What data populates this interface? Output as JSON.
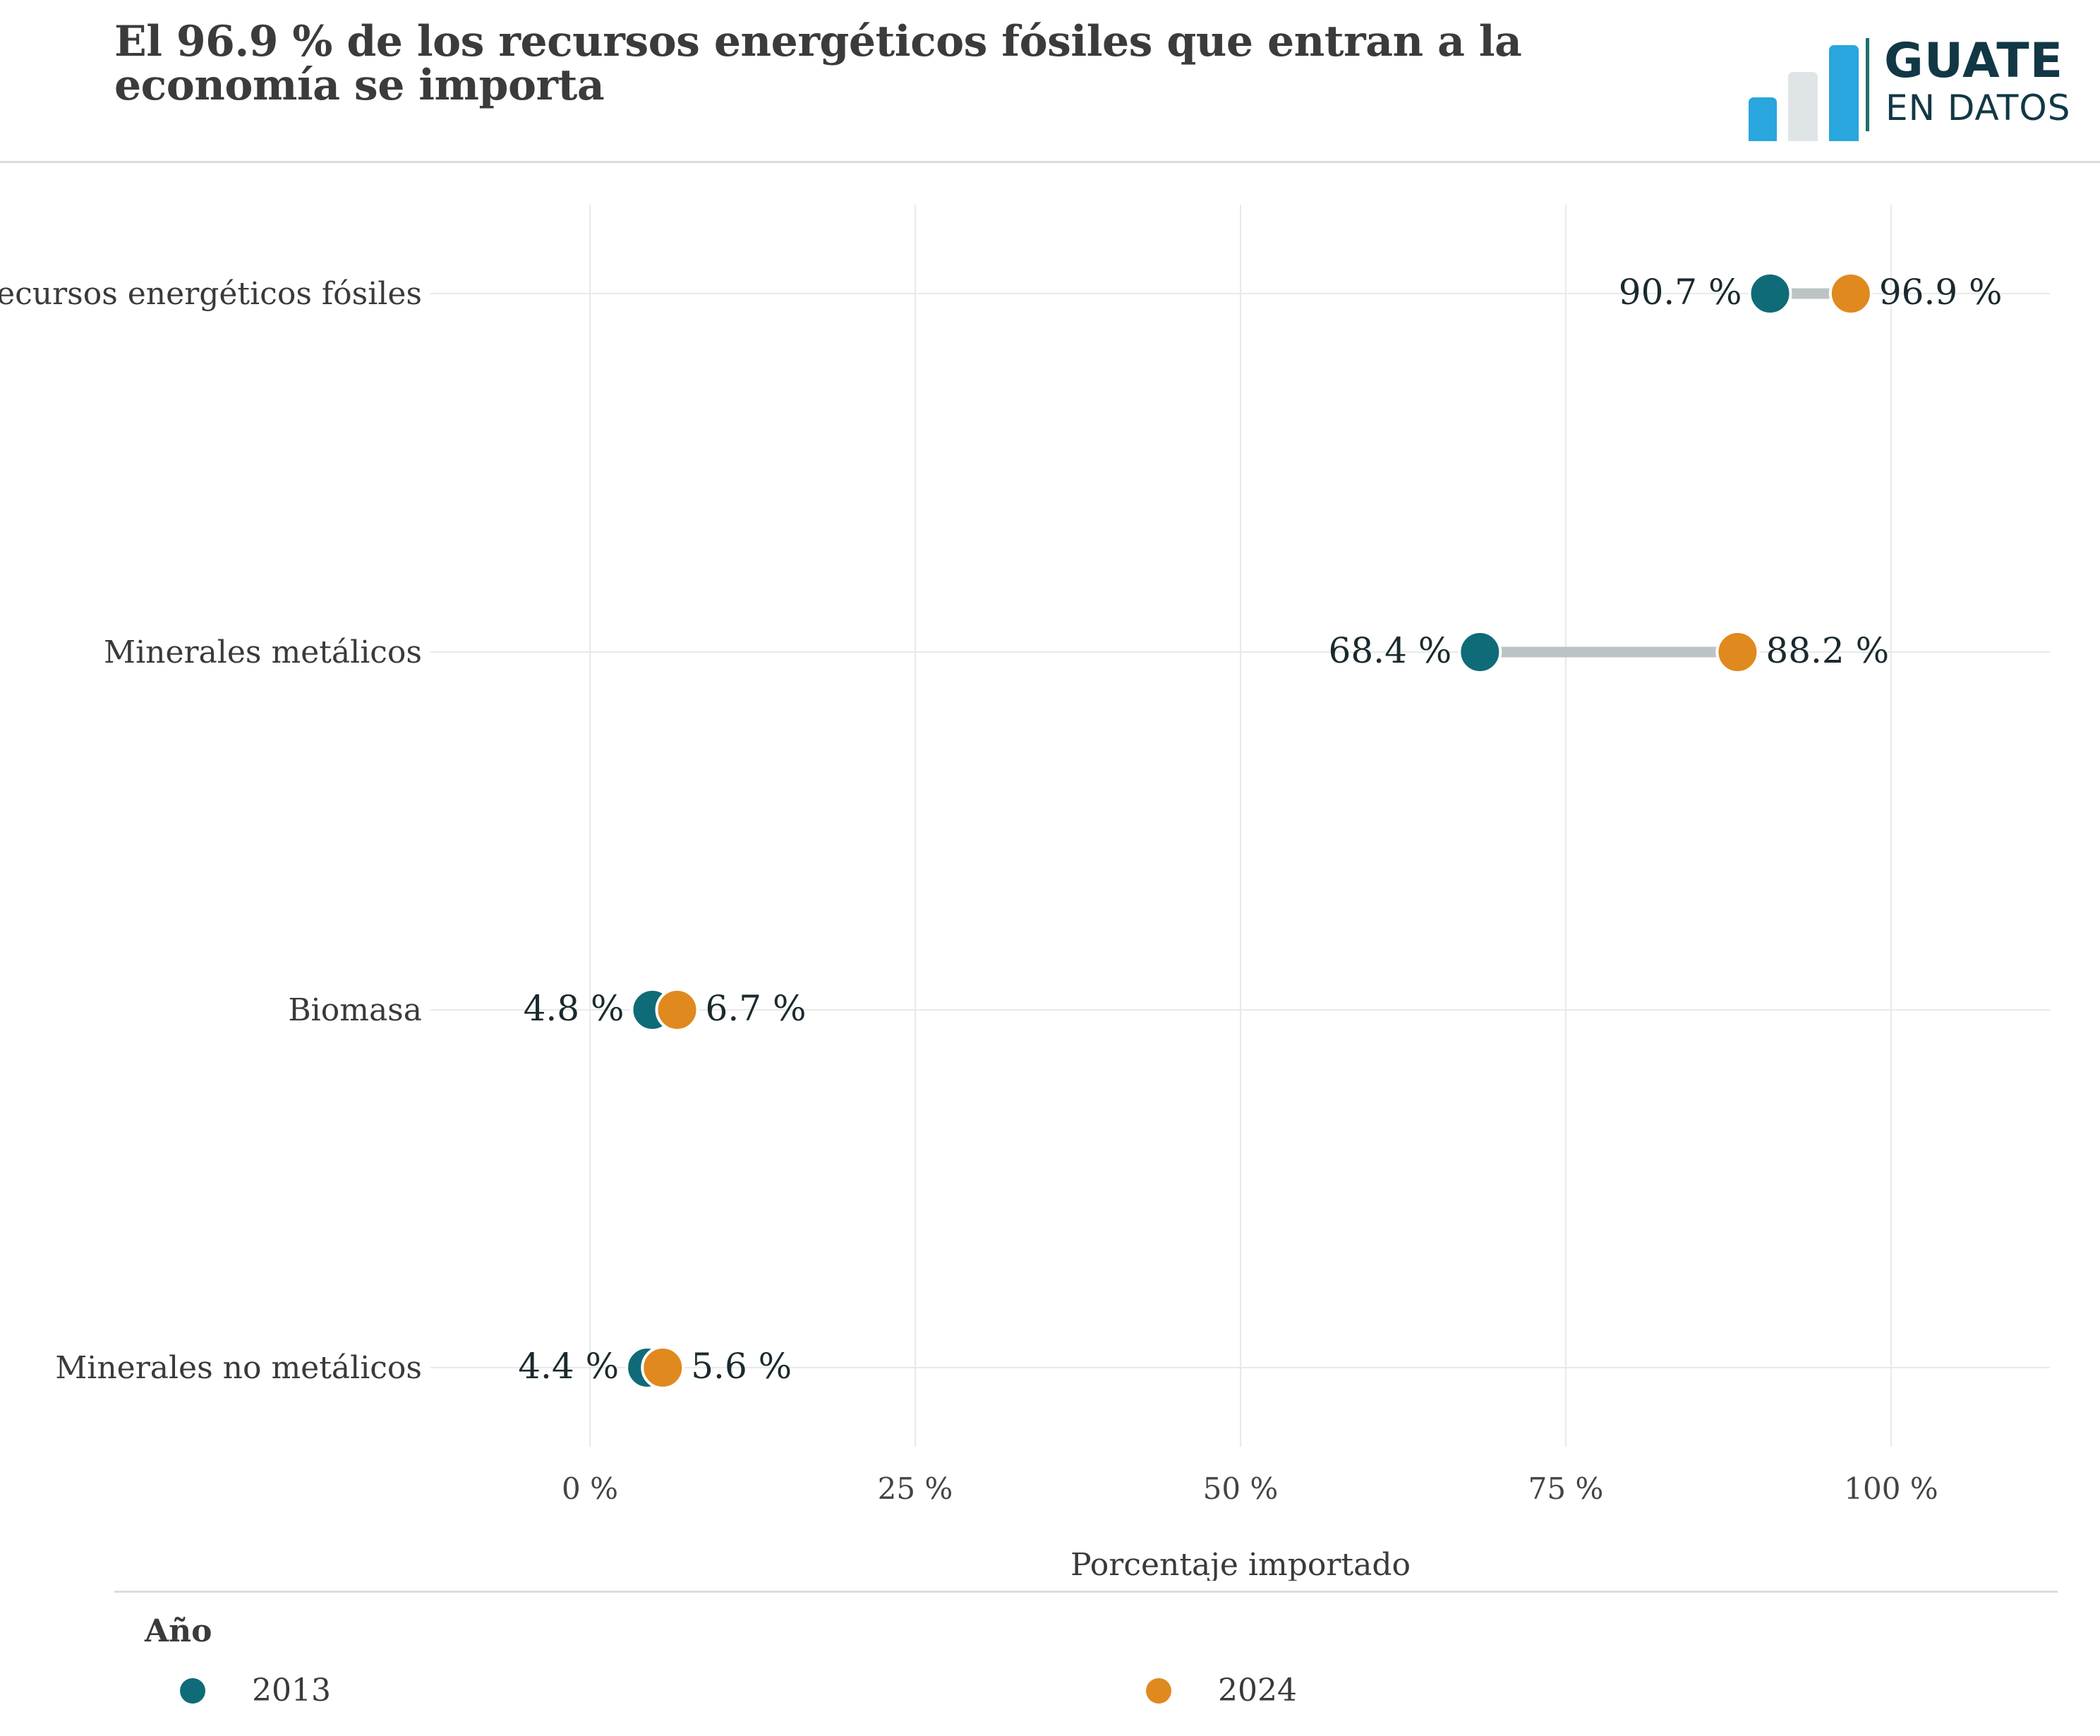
{
  "header": {
    "title": "El 96.9 % de los recursos energéticos fósiles que entran a la economía se importa"
  },
  "logo": {
    "line1": "GUATE",
    "line2": "EN DATOS",
    "colors": [
      "#29a6de",
      "#dfe4e6",
      "#29a6de"
    ],
    "accent_color": "#1f6f6a",
    "text_color": "#123845"
  },
  "chart_data": {
    "type": "dumbbell",
    "xlabel": "Porcentaje importado",
    "xlim": [
      0,
      100
    ],
    "x_ticks": [
      0,
      25,
      50,
      75,
      100
    ],
    "x_tick_labels": [
      "0 %",
      "25 %",
      "50 %",
      "75 %",
      "100 %"
    ],
    "grid": true,
    "legend_position": "bottom",
    "categories": [
      "Recursos energéticos fósiles",
      "Minerales metálicos",
      "Biomasa",
      "Minerales no metálicos"
    ],
    "series": [
      {
        "name": "2013",
        "color": "#0f6b78",
        "values": [
          90.7,
          68.4,
          4.8,
          4.4
        ],
        "labels": [
          "90.7 %",
          "68.4 %",
          "4.8 %",
          "4.4 %"
        ]
      },
      {
        "name": "2024",
        "color": "#e0891f",
        "values": [
          96.9,
          88.2,
          6.7,
          5.6
        ],
        "labels": [
          "96.9 %",
          "88.2 %",
          "6.7 %",
          "5.6 %"
        ]
      }
    ],
    "connector_color": "#bcc3c5"
  },
  "legend": {
    "title": "Año",
    "items": [
      {
        "label": "2013",
        "color": "#0f6b78"
      },
      {
        "label": "2024",
        "color": "#e0891f"
      }
    ]
  }
}
